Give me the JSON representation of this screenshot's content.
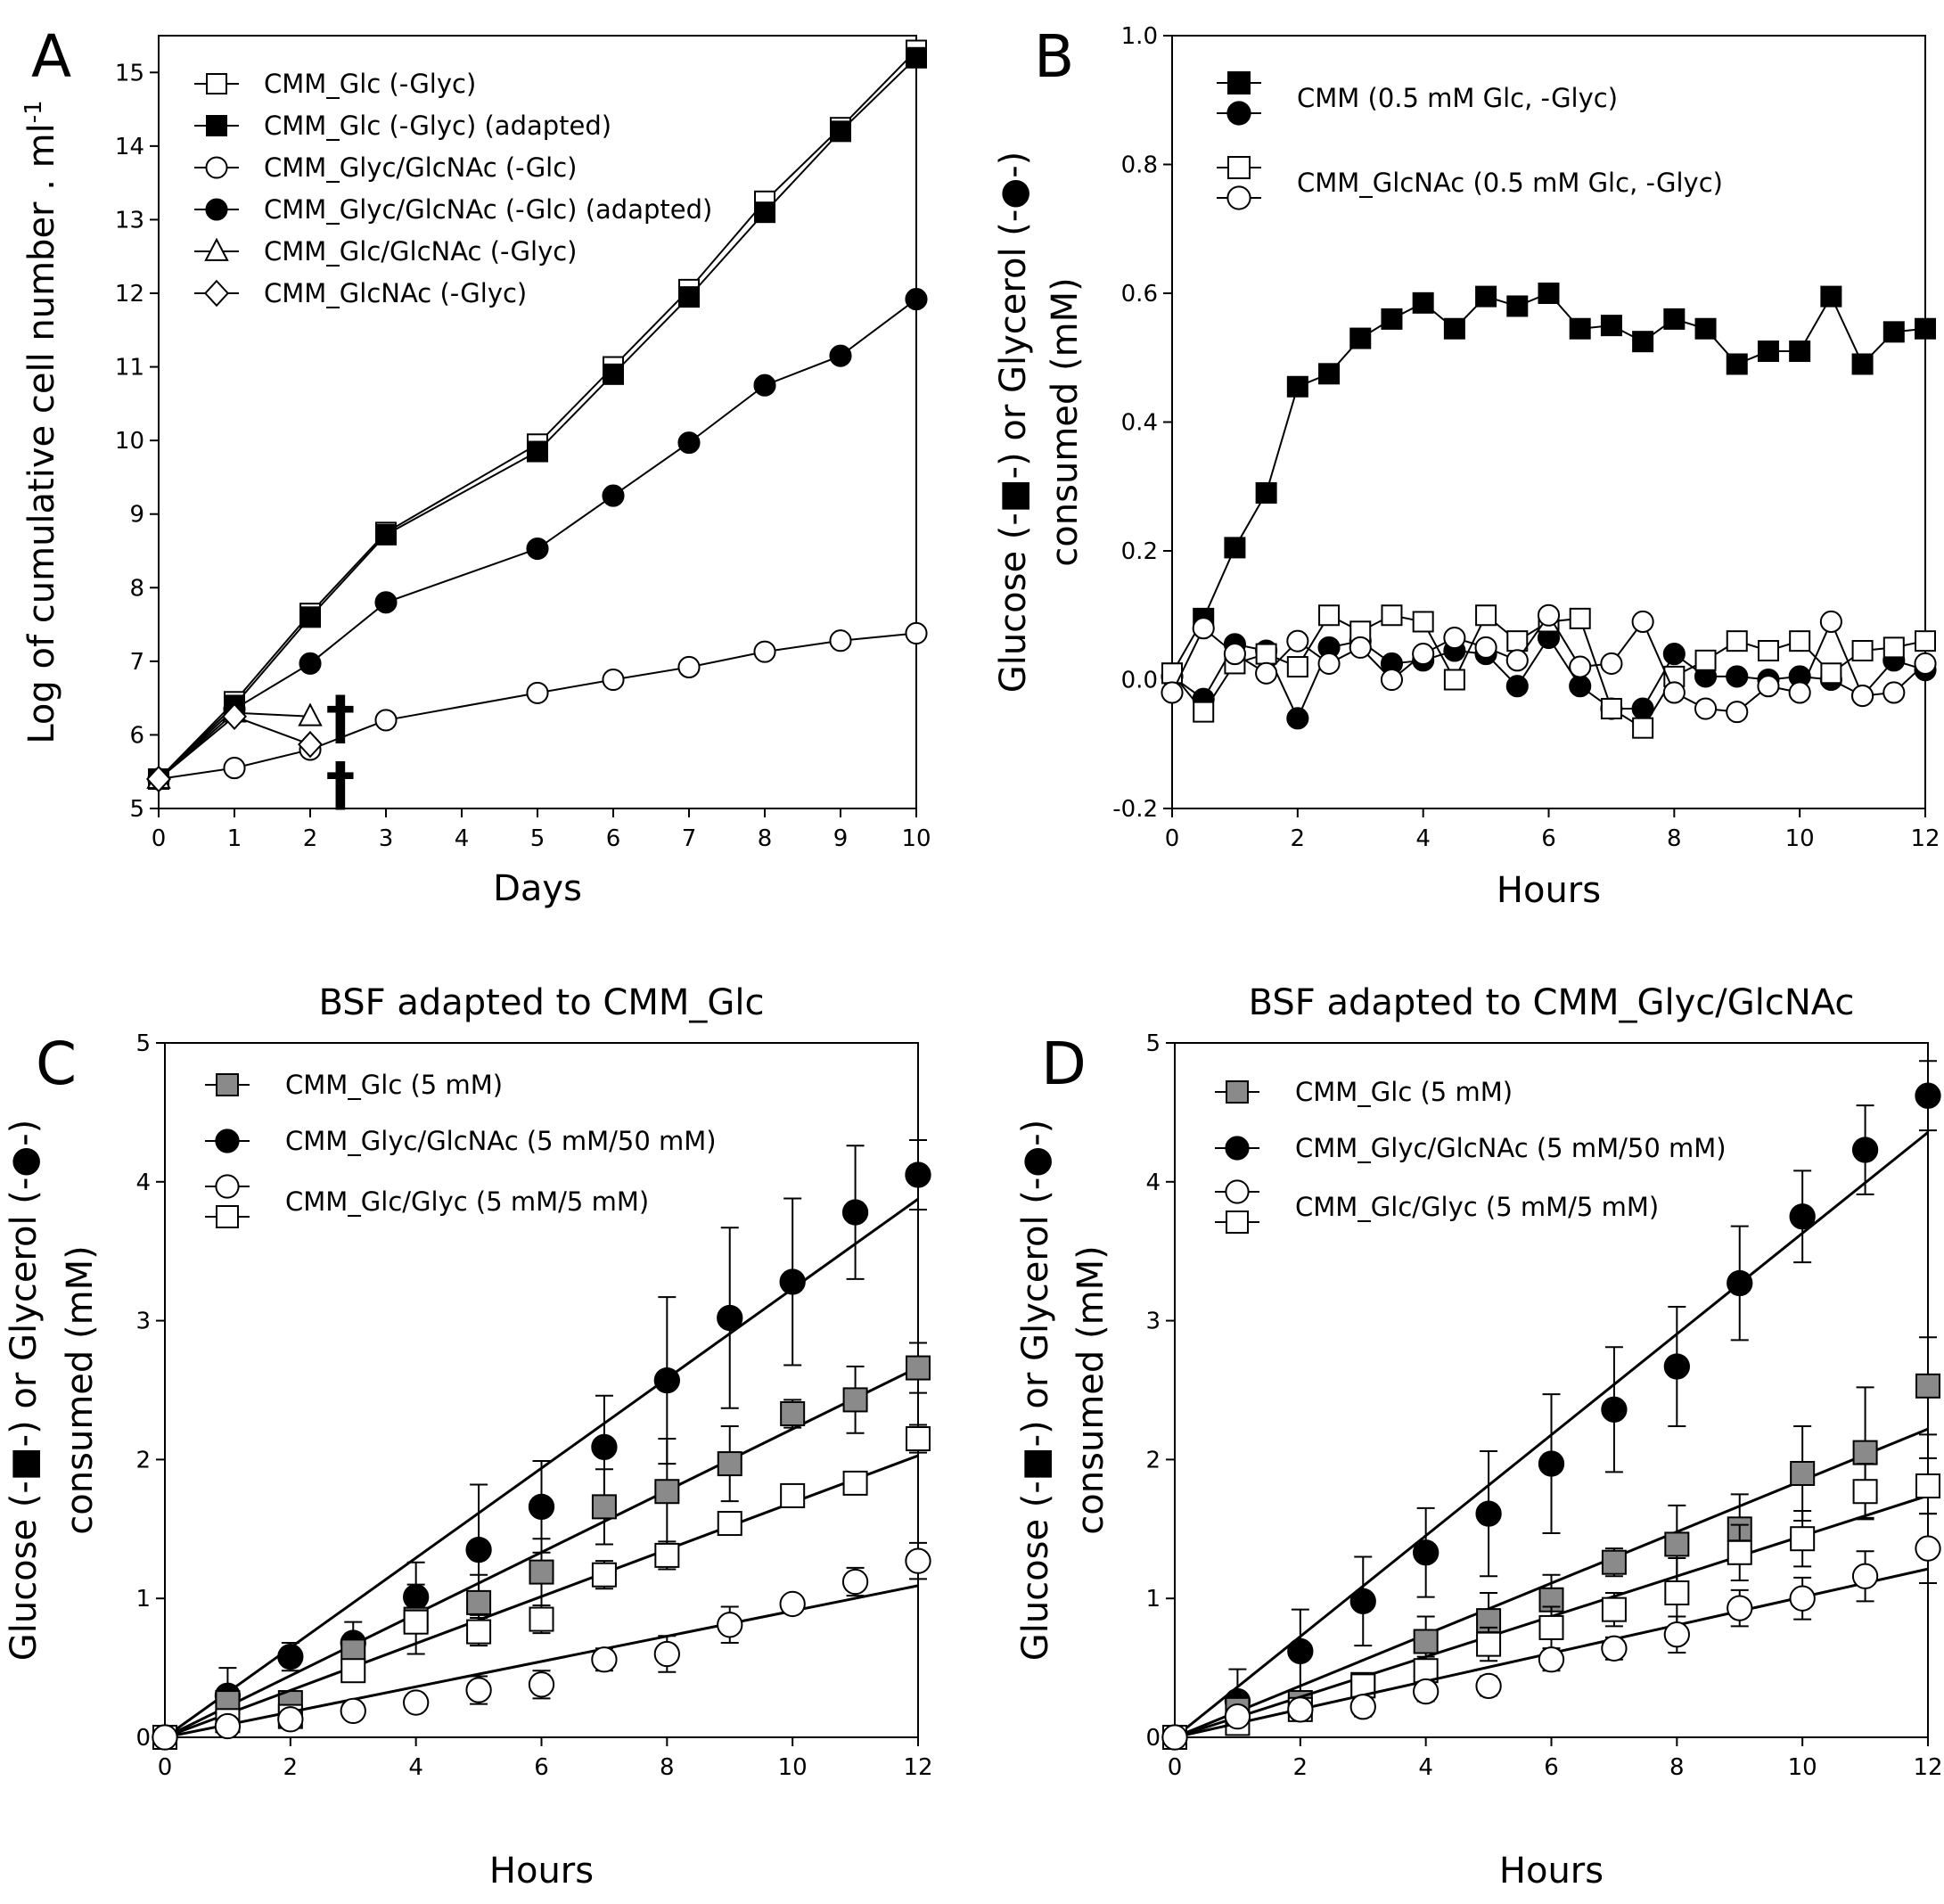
{
  "chart_data": [
    {
      "panel": "A",
      "type": "line",
      "title": "",
      "xlabel": "Days",
      "ylabel": "Log of cumulative cell number . ml",
      "ylabel_sup": "-1",
      "xlim": [
        0,
        10
      ],
      "ylim": [
        5,
        15.5
      ],
      "xticks": [
        "0",
        "1",
        "2",
        "3",
        "4",
        "5",
        "6",
        "7",
        "8",
        "9",
        "10"
      ],
      "yticks": [
        "5",
        "6",
        "7",
        "8",
        "9",
        "10",
        "11",
        "12",
        "13",
        "14",
        "15"
      ],
      "annotations": [
        "†",
        "†"
      ],
      "annotation_points": [
        [
          2.4,
          6.3
        ],
        [
          2.4,
          5.4
        ]
      ],
      "series": [
        {
          "name": "CMM_Glc (-Glyc)",
          "marker": "square",
          "fill": "white",
          "x": [
            0,
            1,
            2,
            3,
            5,
            6,
            7,
            8,
            9,
            10
          ],
          "y": [
            5.4,
            6.45,
            7.65,
            8.75,
            9.95,
            11.0,
            12.05,
            13.25,
            14.25,
            15.3
          ]
        },
        {
          "name": "CMM_Glc (-Glyc) (adapted)",
          "marker": "square",
          "fill": "black",
          "x": [
            0,
            1,
            2,
            3,
            5,
            6,
            7,
            8,
            9,
            10
          ],
          "y": [
            5.4,
            6.4,
            7.6,
            8.72,
            9.85,
            10.9,
            11.95,
            13.1,
            14.2,
            15.2
          ]
        },
        {
          "name": "CMM_Glyc/GlcNAc (-Glc)",
          "marker": "circle",
          "fill": "white",
          "x": [
            0,
            1,
            2,
            3,
            5,
            6,
            7,
            8,
            9,
            10
          ],
          "y": [
            5.4,
            5.55,
            5.8,
            6.2,
            6.57,
            6.75,
            6.92,
            7.13,
            7.28,
            7.38
          ]
        },
        {
          "name": "CMM_Glyc/GlcNAc (-Glc) (adapted)",
          "marker": "circle",
          "fill": "black",
          "x": [
            0,
            1,
            2,
            3,
            5,
            6,
            7,
            8,
            9,
            10
          ],
          "y": [
            5.4,
            6.35,
            6.97,
            7.8,
            8.53,
            9.25,
            9.97,
            10.75,
            11.15,
            11.92
          ]
        },
        {
          "name": "CMM_Glc/GlcNAc (-Glyc)",
          "marker": "triangle",
          "fill": "white",
          "x": [
            0,
            1,
            2
          ],
          "y": [
            5.4,
            6.3,
            6.25
          ]
        },
        {
          "name": "CMM_GlcNAc (-Glyc)",
          "marker": "diamond",
          "fill": "white",
          "x": [
            0,
            1,
            2
          ],
          "y": [
            5.4,
            6.25,
            5.87
          ]
        }
      ]
    },
    {
      "panel": "B",
      "type": "line",
      "title": "",
      "xlabel": "Hours",
      "ylabel_line1": "Glucose (-■-) or Glycerol (-●-)",
      "ylabel_line2": "consumed (mM)",
      "xlim": [
        0,
        12
      ],
      "ylim": [
        -0.2,
        1.0
      ],
      "xticks": [
        "0",
        "2",
        "4",
        "6",
        "8",
        "10",
        "12"
      ],
      "yticks": [
        "-0.2",
        "0.0",
        "0.2",
        "0.4",
        "0.6",
        "0.8",
        "1.0"
      ],
      "legend_groups": [
        {
          "label": "CMM (0.5 mM Glc, -Glyc)",
          "markers": [
            "square-black",
            "circle-black"
          ]
        },
        {
          "label": "CMM_GlcNAc (0.5 mM Glc, -Glyc)",
          "markers": [
            "square-white",
            "circle-white"
          ]
        }
      ],
      "series": [
        {
          "name": "CMM Glucose",
          "marker": "square",
          "fill": "black",
          "x": [
            0,
            0.5,
            1,
            1.5,
            2,
            2.5,
            3,
            3.5,
            4,
            4.5,
            5,
            5.5,
            6,
            6.5,
            7,
            7.5,
            8,
            8.5,
            9,
            9.5,
            10,
            10.5,
            11,
            11.5,
            12
          ],
          "y": [
            0.01,
            0.095,
            0.205,
            0.29,
            0.455,
            0.475,
            0.53,
            0.56,
            0.585,
            0.545,
            0.595,
            0.58,
            0.6,
            0.545,
            0.55,
            0.525,
            0.56,
            0.545,
            0.49,
            0.51,
            0.51,
            0.595,
            0.49,
            0.54,
            0.545
          ]
        },
        {
          "name": "CMM Glycerol",
          "marker": "circle",
          "fill": "black",
          "x": [
            0,
            0.5,
            1,
            1.5,
            2,
            2.5,
            3,
            3.5,
            4,
            4.5,
            5,
            5.5,
            6,
            6.5,
            7,
            7.5,
            8,
            8.5,
            9,
            9.5,
            10,
            10.5,
            11,
            11.5,
            12
          ],
          "y": [
            0.005,
            -0.03,
            0.055,
            0.045,
            -0.06,
            0.05,
            0.06,
            0.025,
            0.03,
            0.045,
            0.04,
            -0.01,
            0.065,
            -0.01,
            -0.045,
            -0.045,
            0.04,
            0.005,
            0.005,
            0.0,
            0.005,
            0.0,
            -0.025,
            0.03,
            0.015
          ]
        },
        {
          "name": "CMM_GlcNAc Glucose",
          "marker": "square",
          "fill": "white",
          "x": [
            0,
            0.5,
            1,
            1.5,
            2,
            2.5,
            3,
            3.5,
            4,
            4.5,
            5,
            5.5,
            6,
            6.5,
            7,
            7.5,
            8,
            8.5,
            9,
            9.5,
            10,
            10.5,
            11,
            11.5,
            12
          ],
          "y": [
            0.01,
            -0.05,
            0.025,
            0.04,
            0.02,
            0.1,
            0.075,
            0.1,
            0.09,
            0.0,
            0.1,
            0.06,
            0.09,
            0.095,
            -0.045,
            -0.075,
            0.005,
            0.03,
            0.06,
            0.045,
            0.06,
            0.01,
            0.045,
            0.05,
            0.06
          ]
        },
        {
          "name": "CMM_GlcNAc Glycerol",
          "marker": "circle",
          "fill": "white",
          "x": [
            0,
            0.5,
            1,
            1.5,
            2,
            2.5,
            3,
            3.5,
            4,
            4.5,
            5,
            5.5,
            6,
            6.5,
            7,
            7.5,
            8,
            8.5,
            9,
            9.5,
            10,
            10.5,
            11,
            11.5,
            12
          ],
          "y": [
            -0.02,
            0.08,
            0.04,
            0.01,
            0.06,
            0.025,
            0.05,
            0.0,
            0.04,
            0.065,
            0.05,
            0.03,
            0.1,
            0.02,
            0.025,
            0.09,
            -0.02,
            -0.045,
            -0.05,
            -0.01,
            -0.02,
            0.09,
            -0.025,
            -0.02,
            0.025
          ]
        }
      ]
    },
    {
      "panel": "C",
      "type": "scatter",
      "title": "BSF adapted to CMM_Glc",
      "xlabel": "Hours",
      "ylabel_line1": "Glucose (-■-) or Glycerol (-●-)",
      "ylabel_line2": "consumed (mM)",
      "xlim": [
        0,
        12
      ],
      "ylim": [
        0,
        5
      ],
      "xticks": [
        "0",
        "2",
        "4",
        "6",
        "8",
        "10",
        "12"
      ],
      "yticks": [
        "0",
        "1",
        "2",
        "3",
        "4",
        "5"
      ],
      "legend_groups": [
        {
          "label": "CMM_Glc (5 mM)",
          "markers": [
            "square-gray"
          ]
        },
        {
          "label": "CMM_Glyc/GlcNAc (5 mM/50 mM)",
          "markers": [
            "circle-black"
          ]
        },
        {
          "label": "CMM_Glc/Glyc (5 mM/5 mM)",
          "markers": [
            "circle-white",
            "square-white"
          ]
        }
      ],
      "series": [
        {
          "name": "CMM_Glyc/GlcNAc (5 mM/50 mM)",
          "marker": "circle",
          "fill": "black",
          "x": [
            0,
            1,
            2,
            3,
            4,
            5,
            6,
            7,
            8,
            9,
            10,
            11,
            12
          ],
          "y": [
            0,
            0.3,
            0.58,
            0.68,
            1.01,
            1.35,
            1.66,
            2.09,
            2.57,
            3.02,
            3.28,
            3.78,
            4.05
          ],
          "err": [
            0,
            0.2,
            0.1,
            0.15,
            0.25,
            0.47,
            0.33,
            0.37,
            0.6,
            0.65,
            0.6,
            0.48,
            0.25
          ],
          "fit": [
            0,
            0.323
          ]
        },
        {
          "name": "CMM_Glc (5 mM)",
          "marker": "square",
          "fill": "gray",
          "x": [
            0,
            1,
            2,
            3,
            4,
            5,
            6,
            7,
            8,
            9,
            10,
            11,
            12
          ],
          "y": [
            0,
            0.25,
            0.25,
            0.62,
            0.85,
            0.97,
            1.19,
            1.66,
            1.77,
            1.97,
            2.33,
            2.43,
            2.66
          ],
          "err": [
            0,
            0.05,
            0.05,
            0.05,
            0.25,
            0.2,
            0.24,
            0.27,
            0.38,
            0.27,
            0.1,
            0.24,
            0.18
          ],
          "fit": [
            0,
            0.222
          ]
        },
        {
          "name": "CMM_Glc/Glyc Glucose",
          "marker": "square",
          "fill": "white",
          "x": [
            0,
            1,
            2,
            3,
            4,
            5,
            6,
            7,
            8,
            9,
            10,
            11,
            12
          ],
          "y": [
            0,
            0.12,
            0.15,
            0.48,
            0.83,
            0.76,
            0.85,
            1.17,
            1.31,
            1.54,
            1.74,
            1.83,
            2.15
          ],
          "err": [
            0,
            0.03,
            0.03,
            0.05,
            0.05,
            0.1,
            0.1,
            0.1,
            0.1,
            0.05,
            0.05,
            0.08,
            0.1
          ],
          "fit": [
            0,
            0.169
          ]
        },
        {
          "name": "CMM_Glc/Glyc Glycerol",
          "marker": "circle",
          "fill": "white",
          "x": [
            0,
            1,
            2,
            3,
            4,
            5,
            6,
            7,
            8,
            9,
            10,
            11,
            12
          ],
          "y": [
            0,
            0.08,
            0.13,
            0.19,
            0.25,
            0.34,
            0.38,
            0.56,
            0.6,
            0.81,
            0.96,
            1.12,
            1.27
          ],
          "err": [
            0,
            0.03,
            0.03,
            0.05,
            0.05,
            0.1,
            0.1,
            0.08,
            0.13,
            0.13,
            0.05,
            0.1,
            0.13
          ],
          "fit": [
            0,
            0.091
          ]
        }
      ]
    },
    {
      "panel": "D",
      "type": "scatter",
      "title": "BSF adapted to CMM_Glyc/GlcNAc",
      "xlabel": "Hours",
      "ylabel_line1": "Glucose (-■-) or Glycerol (-●-)",
      "ylabel_line2": "consumed (mM)",
      "xlim": [
        0,
        12
      ],
      "ylim": [
        0,
        5
      ],
      "xticks": [
        "0",
        "2",
        "4",
        "6",
        "8",
        "10",
        "12"
      ],
      "yticks": [
        "0",
        "1",
        "2",
        "3",
        "4",
        "5"
      ],
      "legend_groups": [
        {
          "label": "CMM_Glc (5 mM)",
          "markers": [
            "square-gray"
          ]
        },
        {
          "label": "CMM_Glyc/GlcNAc (5 mM/50 mM)",
          "markers": [
            "circle-black"
          ]
        },
        {
          "label": "CMM_Glc/Glyc (5 mM/5 mM)",
          "markers": [
            "circle-white",
            "square-white"
          ]
        }
      ],
      "series": [
        {
          "name": "CMM_Glyc/GlcNAc (5 mM/50 mM)",
          "marker": "circle",
          "fill": "black",
          "x": [
            0,
            1,
            2,
            3,
            4,
            5,
            6,
            7,
            8,
            9,
            10,
            11,
            12
          ],
          "y": [
            0,
            0.26,
            0.62,
            0.98,
            1.33,
            1.61,
            1.97,
            2.36,
            2.67,
            3.27,
            3.75,
            4.23,
            4.62
          ],
          "err": [
            0,
            0.23,
            0.3,
            0.32,
            0.32,
            0.45,
            0.5,
            0.45,
            0.43,
            0.41,
            0.33,
            0.32,
            0.25
          ],
          "fit": [
            0,
            0.363
          ]
        },
        {
          "name": "CMM_Glc (5 mM)",
          "marker": "square",
          "fill": "gray",
          "x": [
            0,
            1,
            2,
            3,
            4,
            5,
            6,
            7,
            8,
            9,
            10,
            11,
            12
          ],
          "y": [
            0,
            0.2,
            0.25,
            0.38,
            0.69,
            0.84,
            0.99,
            1.26,
            1.39,
            1.5,
            1.9,
            2.05,
            2.53
          ],
          "err": [
            0,
            0.05,
            0.05,
            0.08,
            0.18,
            0.2,
            0.18,
            0.1,
            0.28,
            0.25,
            0.34,
            0.47,
            0.35
          ],
          "fit": [
            0,
            0.185
          ]
        },
        {
          "name": "CMM_Glc/Glyc Glucose",
          "marker": "square",
          "fill": "white",
          "x": [
            0,
            1,
            2,
            3,
            4,
            5,
            6,
            7,
            8,
            9,
            10,
            11,
            12
          ],
          "y": [
            0,
            0.1,
            0.2,
            0.37,
            0.48,
            0.67,
            0.79,
            0.92,
            1.04,
            1.33,
            1.43,
            1.77,
            1.81
          ],
          "err": [
            0,
            0.03,
            0.05,
            0.05,
            0.1,
            0.12,
            0.15,
            0.12,
            0.25,
            0.2,
            0.2,
            0.2,
            0.2
          ],
          "fit": [
            0,
            0.145
          ]
        },
        {
          "name": "CMM_Glc/Glyc Glycerol",
          "marker": "circle",
          "fill": "white",
          "x": [
            0,
            1,
            2,
            3,
            4,
            5,
            6,
            7,
            8,
            9,
            10,
            11,
            12
          ],
          "y": [
            0,
            0.15,
            0.2,
            0.22,
            0.33,
            0.37,
            0.56,
            0.64,
            0.74,
            0.93,
            1.0,
            1.16,
            1.36
          ],
          "err": [
            0,
            0.05,
            0.05,
            0.07,
            0.07,
            0.07,
            0.08,
            0.08,
            0.13,
            0.13,
            0.15,
            0.18,
            0.25
          ],
          "fit": [
            0,
            0.101
          ]
        }
      ]
    }
  ]
}
